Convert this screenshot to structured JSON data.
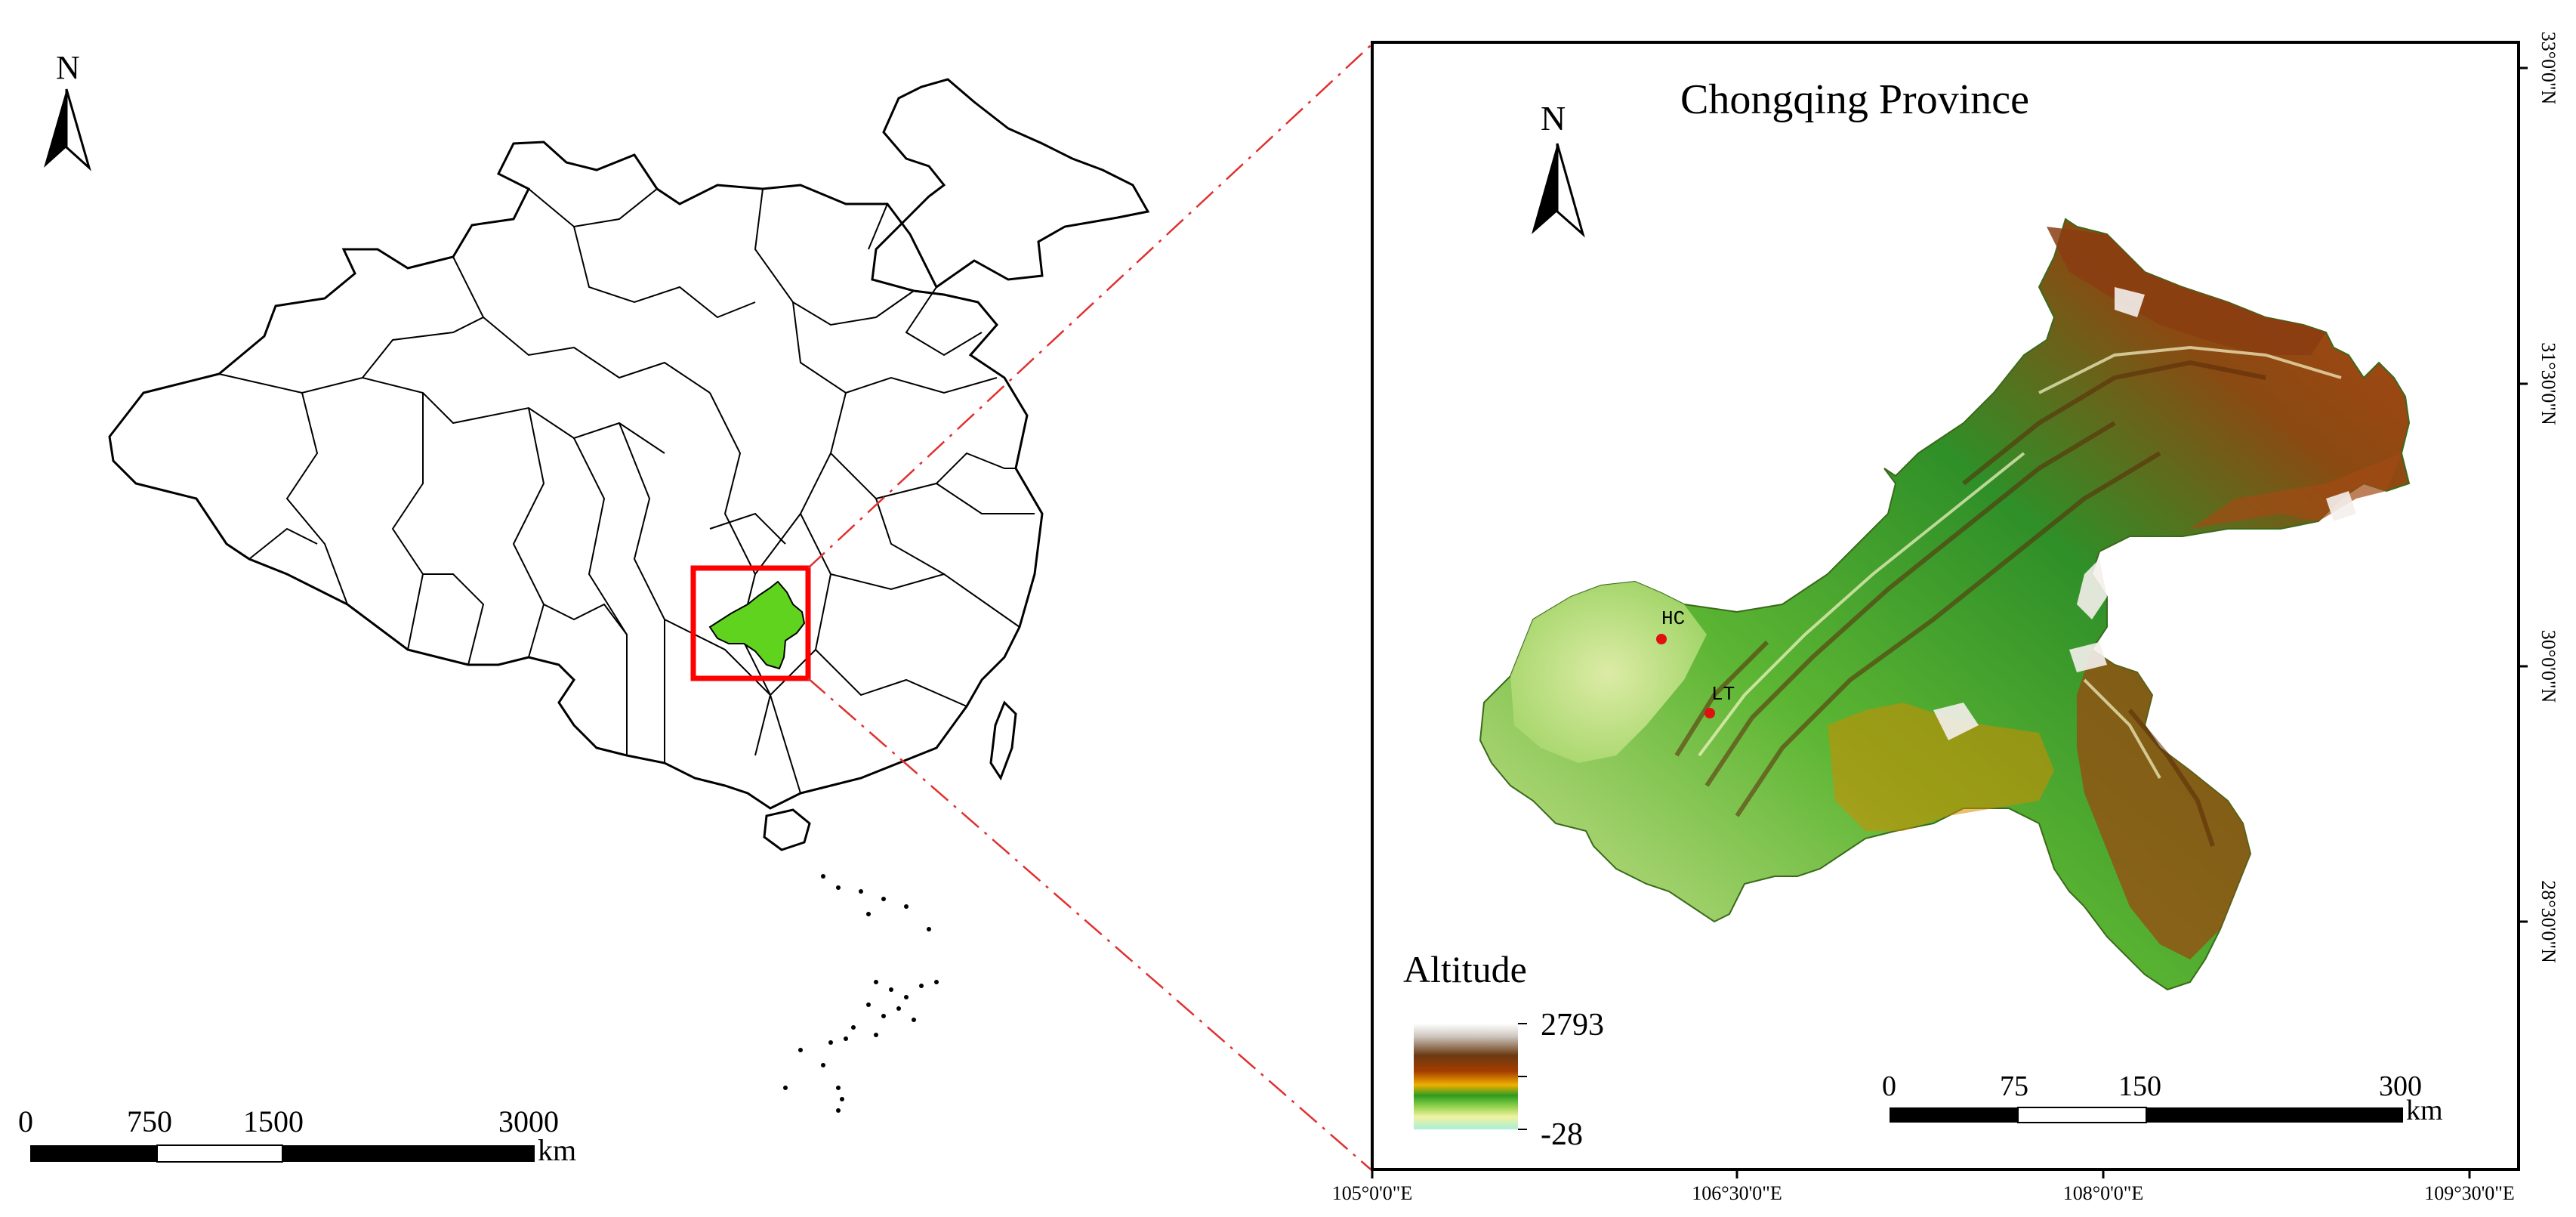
{
  "left_map": {
    "north_label": "N",
    "scale_labels": [
      "0",
      "750",
      "1500",
      "3000"
    ],
    "scale_unit": "km",
    "highlight_color": "#ff0000",
    "province_fill": "#5fd31d"
  },
  "right_map": {
    "title": "Chongqing Province",
    "north_label": "N",
    "legend": {
      "title": "Altitude",
      "max_label": "2793",
      "min_label": "-28"
    },
    "scale_labels": [
      "0",
      "75",
      "150",
      "300"
    ],
    "scale_unit": "km",
    "sites": [
      "HC",
      "LT"
    ],
    "site_color": "#e01010",
    "lon_labels": [
      "105°0'0\"E",
      "106°30'0\"E",
      "108°0'0\"E",
      "109°30'0\"E"
    ],
    "lat_labels": [
      "33°0'0\"N",
      "31°30'0\"N",
      "30°0'0\"N",
      "28°30'0\"N"
    ]
  }
}
